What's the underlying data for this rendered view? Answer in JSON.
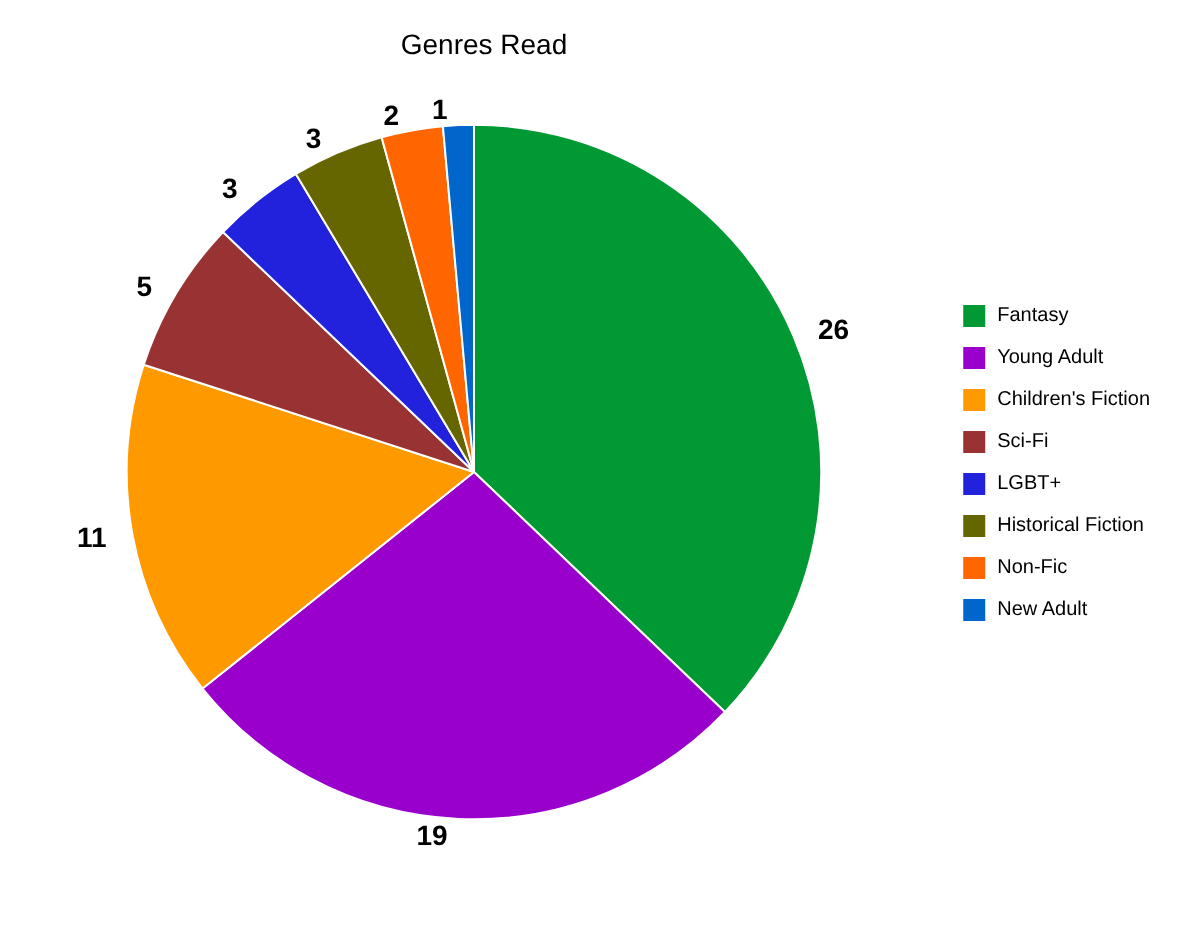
{
  "chart_data": {
    "type": "pie",
    "title": "Genres Read",
    "categories": [
      "Fantasy",
      "Young Adult",
      "Children's Fiction",
      "Sci-Fi",
      "LGBT+",
      "Historical Fiction",
      "Non-Fic",
      "New Adult"
    ],
    "values": [
      26,
      19,
      11,
      5,
      3,
      3,
      2,
      1
    ],
    "colors": [
      "#009933",
      "#9900cc",
      "#ff9900",
      "#993333",
      "#2222dd",
      "#666600",
      "#ff6600",
      "#0066cc"
    ],
    "data_labels": true,
    "legend": "right"
  }
}
